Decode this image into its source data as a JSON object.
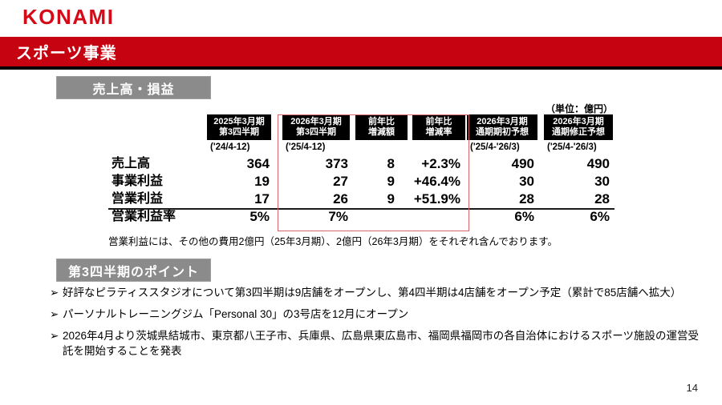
{
  "logo_text": "KONAMI",
  "banner": {
    "title": "スポーツ事業"
  },
  "unit_label": "（単位：億円）",
  "sales_section": {
    "title": "売上高・損益"
  },
  "table": {
    "columns": [
      {
        "line1": "2025年3月期",
        "line2": "第3四半期",
        "sub": "('24/4-12)",
        "highlight": false
      },
      {
        "line1": "2026年3月期",
        "line2": "第3四半期",
        "sub": "('25/4-12)",
        "highlight": true
      },
      {
        "line1": "前年比",
        "line2": "増減額",
        "sub": "",
        "highlight": true
      },
      {
        "line1": "前年比",
        "line2": "増減率",
        "sub": "",
        "highlight": true
      },
      {
        "line1": "2026年3月期",
        "line2": "通期期初予想",
        "sub": "('25/4-'26/3)",
        "highlight": false
      },
      {
        "line1": "2026年3月期",
        "line2": "通期修正予想",
        "sub": "('25/4-'26/3)",
        "highlight": false
      }
    ],
    "rows": [
      {
        "label": "売上高",
        "values": [
          "364",
          "373",
          "8",
          "+2.3%",
          "490",
          "490"
        ]
      },
      {
        "label": "事業利益",
        "values": [
          "19",
          "27",
          "9",
          "+46.4%",
          "30",
          "30"
        ]
      },
      {
        "label": "営業利益",
        "values": [
          "17",
          "26",
          "9",
          "+51.9%",
          "28",
          "28"
        ]
      },
      {
        "label": "営業利益率",
        "values": [
          "5%",
          "7%",
          "",
          "",
          "6%",
          "6%"
        ]
      }
    ],
    "footnote": "営業利益には、その他の費用2億円（25年3月期）、2億円（26年3月期）をそれぞれ含んでおります。"
  },
  "points_section": {
    "title": "第3四半期のポイント",
    "marker": "➢",
    "bullets": [
      "好評なピラティススタジオについて第3四半期は9店舗をオープンし、第4四半期は4店舗をオープン予定（累計で85店舗へ拡大）",
      "パーソナルトレーニングジム「Personal 30」の3号店を12月にオープン",
      "2026年4月より茨城県結城市、東京都八王子市、兵庫県、広島県東広島市、福岡県福岡市の各自治体におけるスポーツ施設の運営受託を開始することを発表"
    ]
  },
  "page_number": "14",
  "colors": {
    "brand_red": "#d50a18",
    "banner_red": "#c60310",
    "section_gray": "#8b8b8b",
    "header_black": "#000000",
    "highlight_red": "#d4666b"
  }
}
